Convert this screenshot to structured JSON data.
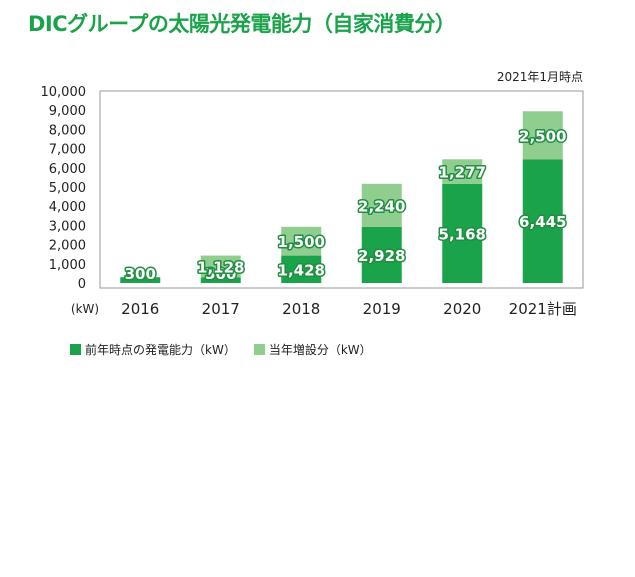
{
  "title": "DICグループの太陽光発電能力（自家消費分）",
  "note": "2021年1月時点",
  "colors": {
    "base": "#1aa34a",
    "increase": "#8fce8e",
    "frame": "#9a9a9a"
  },
  "chart_data": {
    "type": "bar",
    "stacked": true,
    "categories": [
      "2016",
      "2017",
      "2018",
      "2019",
      "2020",
      "2021計画"
    ],
    "series": [
      {
        "name": "前年時点の発電能力（kW）",
        "values": [
          300,
          300,
          1428,
          2928,
          5168,
          6445
        ]
      },
      {
        "name": "当年増設分（kW）",
        "values": [
          0,
          1128,
          1500,
          2240,
          1277,
          2500
        ]
      }
    ],
    "data_labels": [
      [
        "300",
        "300",
        "1,428",
        "2,928",
        "5,168",
        "6,445"
      ],
      [
        "",
        "1,128",
        "1,500",
        "2,240",
        "1,277",
        "2,500"
      ]
    ],
    "yticks": [
      "0",
      "1,000",
      "2,000",
      "3,000",
      "4,000",
      "5,000",
      "6,000",
      "7,000",
      "8,000",
      "9,000",
      "10,000"
    ],
    "ylim": [
      0,
      10000
    ],
    "ylabel": "(kW)",
    "grid": false,
    "legend": "bottom-left"
  }
}
